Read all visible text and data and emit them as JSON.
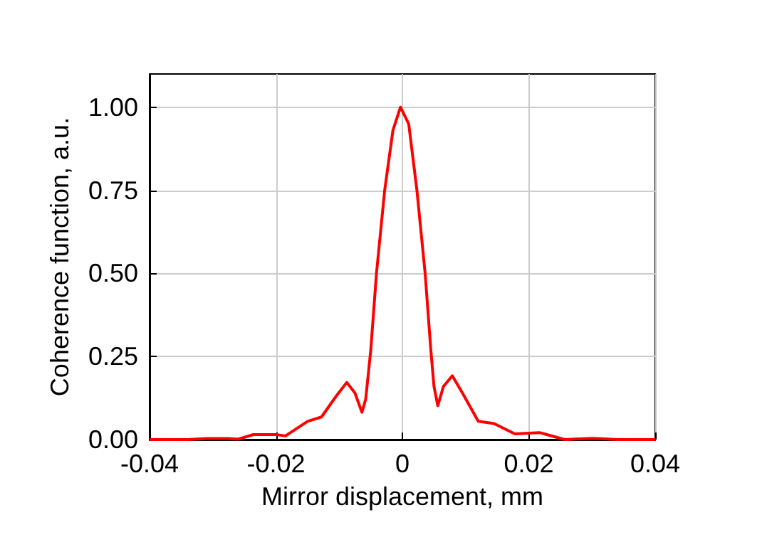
{
  "chart_data": {
    "type": "line",
    "xlabel": "Mirror displacement, mm",
    "ylabel": "Coherence function, a.u.",
    "x": [
      -0.04,
      -0.034,
      -0.031,
      -0.0275,
      -0.026,
      -0.0236,
      -0.02,
      -0.0185,
      -0.015,
      -0.0128,
      -0.0105,
      -0.0088,
      -0.0075,
      -0.0064,
      -0.0058,
      -0.005,
      -0.0041,
      -0.0028,
      -0.0015,
      -0.0003,
      0.001,
      0.0023,
      0.0036,
      0.0045,
      0.005,
      0.0056,
      0.0065,
      0.0079,
      0.0095,
      0.012,
      0.0145,
      0.0178,
      0.0217,
      0.0257,
      0.028,
      0.03,
      0.032,
      0.034,
      0.04
    ],
    "series": [
      {
        "color": "#ff0000",
        "values": [
          0,
          0,
          0.003,
          0.003,
          0.001,
          0.015,
          0.015,
          0.011,
          0.055,
          0.068,
          0.13,
          0.172,
          0.14,
          0.082,
          0.122,
          0.27,
          0.5,
          0.75,
          0.93,
          1.0,
          0.95,
          0.75,
          0.5,
          0.27,
          0.16,
          0.102,
          0.16,
          0.192,
          0.14,
          0.055,
          0.048,
          0.017,
          0.021,
          0,
          0.002,
          0.004,
          0.002,
          0,
          0
        ]
      }
    ],
    "xlim": [
      -0.04,
      0.04
    ],
    "xticks": [
      -0.04,
      -0.02,
      0,
      0.02,
      0.04
    ],
    "ylim": [
      0,
      1.1
    ],
    "yticks": [
      {
        "value": 0,
        "label": "0.00"
      },
      {
        "value": 0.25,
        "label": "0.25"
      },
      {
        "value": 0.5,
        "label": "0.50"
      },
      {
        "value": 0.75,
        "label": "0.75"
      },
      {
        "value": 1,
        "label": "1.00"
      }
    ],
    "grid": true,
    "marker": "none",
    "line_style": "solid"
  }
}
